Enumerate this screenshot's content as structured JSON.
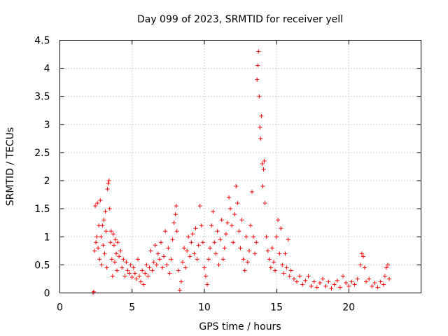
{
  "chart_data": {
    "type": "scatter",
    "title": "Day 099 of 2023, SRMTID for receiver yell",
    "xlabel": "GPS time / hours",
    "ylabel": "SRMTID / TECUs",
    "xlim": [
      0,
      25
    ],
    "ylim": [
      0,
      4.5
    ],
    "x_ticks": [
      "0",
      "5",
      "10",
      "15",
      "20"
    ],
    "y_ticks": [
      "0",
      "0.5",
      "1",
      "1.5",
      "2",
      "2.5",
      "3",
      "3.5",
      "4",
      "4.5"
    ],
    "series_color": "#ff0000",
    "marker": "plus",
    "series": [
      {
        "name": "SRMTID",
        "points": [
          [
            2.3,
            0.0
          ],
          [
            2.35,
            0.02
          ],
          [
            2.4,
            0.75
          ],
          [
            2.45,
            1.55
          ],
          [
            2.5,
            0.9
          ],
          [
            2.55,
            1.0
          ],
          [
            2.6,
            1.6
          ],
          [
            2.65,
            0.8
          ],
          [
            2.7,
            1.2
          ],
          [
            2.75,
            0.6
          ],
          [
            2.8,
            1.65
          ],
          [
            2.85,
            1.0
          ],
          [
            2.9,
            0.5
          ],
          [
            2.95,
            1.2
          ],
          [
            3.0,
            0.85
          ],
          [
            3.05,
            1.3
          ],
          [
            3.1,
            0.7
          ],
          [
            3.15,
            1.45
          ],
          [
            3.2,
            1.1
          ],
          [
            3.25,
            0.45
          ],
          [
            3.3,
            1.85
          ],
          [
            3.35,
            1.95
          ],
          [
            3.4,
            2.0
          ],
          [
            3.45,
            1.5
          ],
          [
            3.5,
            0.9
          ],
          [
            3.55,
            1.1
          ],
          [
            3.6,
            0.6
          ],
          [
            3.65,
            0.3
          ],
          [
            3.7,
            1.05
          ],
          [
            3.75,
            0.85
          ],
          [
            3.8,
            0.55
          ],
          [
            3.85,
            0.95
          ],
          [
            3.9,
            0.7
          ],
          [
            3.95,
            0.4
          ],
          [
            4.0,
            0.9
          ],
          [
            4.1,
            0.65
          ],
          [
            4.2,
            0.75
          ],
          [
            4.3,
            0.45
          ],
          [
            4.4,
            0.6
          ],
          [
            4.5,
            0.3
          ],
          [
            4.6,
            0.55
          ],
          [
            4.7,
            0.4
          ],
          [
            4.8,
            0.35
          ],
          [
            4.9,
            0.5
          ],
          [
            5.0,
            0.28
          ],
          [
            5.1,
            0.45
          ],
          [
            5.2,
            0.35
          ],
          [
            5.3,
            0.25
          ],
          [
            5.4,
            0.6
          ],
          [
            5.5,
            0.3
          ],
          [
            5.6,
            0.2
          ],
          [
            5.7,
            0.4
          ],
          [
            5.8,
            0.15
          ],
          [
            5.9,
            0.35
          ],
          [
            6.0,
            0.5
          ],
          [
            6.1,
            0.3
          ],
          [
            6.2,
            0.45
          ],
          [
            6.3,
            0.75
          ],
          [
            6.4,
            0.4
          ],
          [
            6.5,
            0.55
          ],
          [
            6.6,
            0.85
          ],
          [
            6.7,
            0.5
          ],
          [
            6.8,
            0.7
          ],
          [
            6.9,
            0.6
          ],
          [
            7.0,
            0.9
          ],
          [
            7.1,
            0.45
          ],
          [
            7.2,
            0.65
          ],
          [
            7.3,
            1.1
          ],
          [
            7.4,
            0.5
          ],
          [
            7.5,
            0.8
          ],
          [
            7.6,
            0.35
          ],
          [
            7.7,
            0.6
          ],
          [
            7.8,
            0.95
          ],
          [
            7.9,
            1.25
          ],
          [
            8.0,
            1.4
          ],
          [
            8.05,
            1.55
          ],
          [
            8.1,
            1.1
          ],
          [
            8.2,
            0.4
          ],
          [
            8.3,
            0.05
          ],
          [
            8.4,
            0.2
          ],
          [
            8.5,
            0.55
          ],
          [
            8.6,
            0.8
          ],
          [
            8.7,
            0.45
          ],
          [
            8.8,
            0.75
          ],
          [
            8.9,
            1.0
          ],
          [
            9.0,
            0.65
          ],
          [
            9.1,
            0.9
          ],
          [
            9.2,
            1.05
          ],
          [
            9.3,
            0.7
          ],
          [
            9.4,
            1.15
          ],
          [
            9.5,
            0.6
          ],
          [
            9.6,
            0.85
          ],
          [
            9.7,
            1.55
          ],
          [
            9.8,
            1.2
          ],
          [
            9.9,
            0.9
          ],
          [
            10.0,
            0.45
          ],
          [
            10.1,
            0.3
          ],
          [
            10.2,
            0.15
          ],
          [
            10.3,
            0.6
          ],
          [
            10.4,
            0.8
          ],
          [
            10.5,
            1.2
          ],
          [
            10.6,
            1.45
          ],
          [
            10.7,
            0.9
          ],
          [
            10.8,
            0.7
          ],
          [
            10.9,
            1.1
          ],
          [
            11.0,
            0.5
          ],
          [
            11.1,
            0.95
          ],
          [
            11.2,
            1.3
          ],
          [
            11.3,
            0.6
          ],
          [
            11.4,
            0.8
          ],
          [
            11.5,
            1.05
          ],
          [
            11.6,
            1.25
          ],
          [
            11.7,
            1.7
          ],
          [
            11.8,
            1.5
          ],
          [
            11.9,
            1.2
          ],
          [
            12.0,
            0.9
          ],
          [
            12.1,
            1.4
          ],
          [
            12.2,
            1.9
          ],
          [
            12.3,
            1.6
          ],
          [
            12.4,
            1.1
          ],
          [
            12.5,
            0.8
          ],
          [
            12.6,
            1.3
          ],
          [
            12.7,
            0.6
          ],
          [
            12.8,
            0.4
          ],
          [
            12.9,
            1.0
          ],
          [
            13.0,
            0.55
          ],
          [
            13.1,
            0.75
          ],
          [
            13.2,
            1.2
          ],
          [
            13.3,
            1.8
          ],
          [
            13.4,
            1.0
          ],
          [
            13.5,
            0.7
          ],
          [
            13.6,
            0.9
          ],
          [
            13.65,
            3.8
          ],
          [
            13.7,
            4.05
          ],
          [
            13.75,
            4.3
          ],
          [
            13.8,
            3.5
          ],
          [
            13.85,
            2.95
          ],
          [
            13.9,
            2.75
          ],
          [
            13.95,
            3.15
          ],
          [
            14.0,
            2.3
          ],
          [
            14.05,
            1.9
          ],
          [
            14.1,
            2.2
          ],
          [
            14.15,
            2.35
          ],
          [
            14.2,
            1.6
          ],
          [
            14.3,
            1.0
          ],
          [
            14.4,
            0.75
          ],
          [
            14.5,
            0.6
          ],
          [
            14.6,
            0.45
          ],
          [
            14.7,
            0.8
          ],
          [
            14.8,
            0.55
          ],
          [
            14.9,
            0.4
          ],
          [
            15.0,
            1.0
          ],
          [
            15.1,
            1.3
          ],
          [
            15.2,
            0.7
          ],
          [
            15.3,
            1.15
          ],
          [
            15.4,
            0.5
          ],
          [
            15.5,
            0.35
          ],
          [
            15.6,
            0.7
          ],
          [
            15.7,
            0.45
          ],
          [
            15.8,
            0.95
          ],
          [
            15.9,
            0.3
          ],
          [
            16.0,
            0.4
          ],
          [
            16.2,
            0.25
          ],
          [
            16.4,
            0.2
          ],
          [
            16.6,
            0.3
          ],
          [
            16.8,
            0.15
          ],
          [
            17.0,
            0.22
          ],
          [
            17.2,
            0.3
          ],
          [
            17.4,
            0.12
          ],
          [
            17.6,
            0.2
          ],
          [
            17.8,
            0.1
          ],
          [
            18.0,
            0.18
          ],
          [
            18.2,
            0.25
          ],
          [
            18.4,
            0.12
          ],
          [
            18.6,
            0.2
          ],
          [
            18.8,
            0.08
          ],
          [
            19.0,
            0.15
          ],
          [
            19.2,
            0.22
          ],
          [
            19.4,
            0.1
          ],
          [
            19.6,
            0.3
          ],
          [
            19.8,
            0.18
          ],
          [
            20.0,
            0.12
          ],
          [
            20.2,
            0.2
          ],
          [
            20.4,
            0.15
          ],
          [
            20.6,
            0.25
          ],
          [
            20.8,
            0.5
          ],
          [
            20.9,
            0.7
          ],
          [
            21.0,
            0.65
          ],
          [
            21.1,
            0.45
          ],
          [
            21.2,
            0.2
          ],
          [
            21.4,
            0.25
          ],
          [
            21.6,
            0.12
          ],
          [
            21.8,
            0.18
          ],
          [
            22.0,
            0.1
          ],
          [
            22.2,
            0.2
          ],
          [
            22.4,
            0.15
          ],
          [
            22.5,
            0.3
          ],
          [
            22.6,
            0.45
          ],
          [
            22.7,
            0.5
          ],
          [
            22.8,
            0.25
          ]
        ]
      }
    ]
  }
}
